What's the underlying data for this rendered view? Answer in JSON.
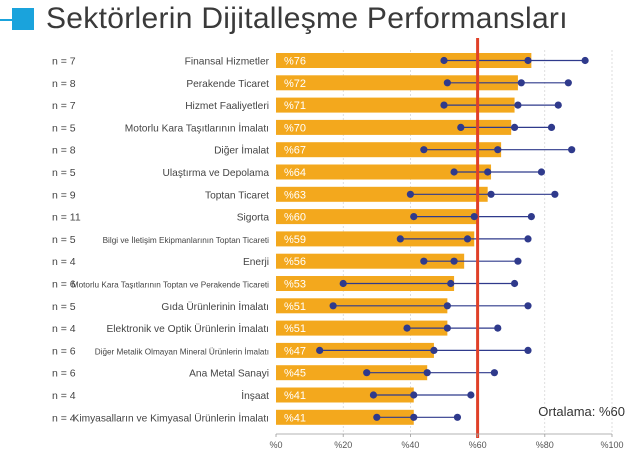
{
  "title": "Sektörlerin Dijitalleşme Performansları",
  "average_label": "Ortalama: %60",
  "colors": {
    "bar": "#f3a81d",
    "dot": "#2f3a8c",
    "range_line": "#2f3a8c",
    "average_line": "#e04028",
    "accent": "#1aa3dc"
  },
  "chart_data": {
    "type": "bar",
    "orientation": "horizontal",
    "xlim": [
      0,
      100
    ],
    "x_ticks": [
      "%0",
      "%20",
      "%40",
      "%60",
      "%80",
      "%100"
    ],
    "average": 60,
    "categories": [
      "Finansal Hizmetler",
      "Perakende Ticaret",
      "Hizmet Faaliyetleri",
      "Motorlu Kara Taşıtlarının İmalatı",
      "Diğer İmalat",
      "Ulaştırma ve Depolama",
      "Toptan Ticaret",
      "Sigorta",
      "Bilgi ve İletişim Ekipmanlarının Toptan Ticareti",
      "Enerji",
      "Motorlu Kara Taşıtlarının Toptan ve Perakende Ticareti",
      "Gıda Ürünlerinin İmalatı",
      "Elektronik ve Optik Ürünlerin İmalatı",
      "Diğer Metalik Olmayan Mineral Ürünlerin İmalatı",
      "Ana Metal Sanayi",
      "İnşaat",
      "Kimyasalların ve Kimyasal Ürünlerin İmalatı"
    ],
    "n_labels": [
      "n = 7",
      "n = 8",
      "n = 7",
      "n = 5",
      "n = 8",
      "n = 5",
      "n = 9",
      "n = 11",
      "n = 5",
      "n = 4",
      "n = 6",
      "n = 5",
      "n = 4",
      "n = 6",
      "n = 6",
      "n = 4",
      "n = 4"
    ],
    "value_labels": [
      "%76",
      "%72",
      "%71",
      "%70",
      "%67",
      "%64",
      "%63",
      "%60",
      "%59",
      "%56",
      "%53",
      "%51",
      "%51",
      "%47",
      "%45",
      "%41",
      "%41"
    ],
    "values": [
      76,
      72,
      71,
      70,
      67,
      64,
      63,
      60,
      59,
      56,
      53,
      51,
      51,
      47,
      45,
      41,
      41
    ],
    "dots": [
      [
        50,
        75,
        92
      ],
      [
        51,
        73,
        87
      ],
      [
        50,
        72,
        84
      ],
      [
        55,
        71,
        82
      ],
      [
        44,
        66,
        88
      ],
      [
        53,
        63,
        79
      ],
      [
        40,
        64,
        83
      ],
      [
        41,
        59,
        76
      ],
      [
        37,
        57,
        75
      ],
      [
        44,
        53,
        72
      ],
      [
        20,
        52,
        71
      ],
      [
        17,
        51,
        75
      ],
      [
        39,
        51,
        66
      ],
      [
        13,
        47,
        75
      ],
      [
        27,
        45,
        65
      ],
      [
        29,
        41,
        58
      ],
      [
        30,
        41,
        54
      ]
    ]
  }
}
